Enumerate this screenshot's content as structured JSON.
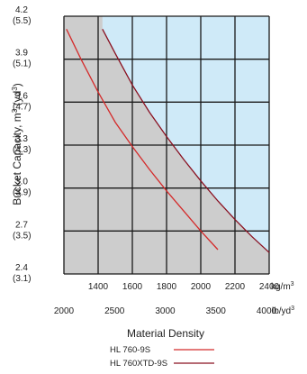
{
  "chart_data": {
    "type": "line",
    "title": "",
    "ylabel_main": "Bucket Capacity, m",
    "ylabel_unit_open": " (yd",
    "ylabel_unit_close": ")",
    "ylabel_sup": "3",
    "xlabel": "Material Density",
    "x_primary_unit": "kg/m",
    "x_primary_unit_sup": "3",
    "x_secondary_unit": "lb/yd",
    "x_secondary_unit_sup": "3",
    "x_primary_ticks": [
      1400,
      1600,
      1800,
      2000,
      2200,
      2400
    ],
    "x_primary_lim": [
      1200,
      2400
    ],
    "x_secondary_ticks": [
      2000,
      2500,
      3000,
      3500,
      4000
    ],
    "y_ticks": [
      {
        "m3": "4.2",
        "yd3": "(5.5)",
        "value": 4.2
      },
      {
        "m3": "3.9",
        "yd3": "(5.1)",
        "value": 3.9
      },
      {
        "m3": "3.6",
        "yd3": "(4.7)",
        "value": 3.6
      },
      {
        "m3": "3.3",
        "yd3": "(4.3)",
        "value": 3.3
      },
      {
        "m3": "3.0",
        "yd3": "(3.9)",
        "value": 3.0
      },
      {
        "m3": "2.7",
        "yd3": "(3.5)",
        "value": 2.7
      },
      {
        "m3": "2.4",
        "yd3": "(3.1)",
        "value": 2.4
      }
    ],
    "ylim": [
      2.4,
      4.2
    ],
    "grid": true,
    "colors": {
      "blue_zone": "#cfeaf8",
      "gray_zone": "#cdcdcd",
      "series_1": "#d42a2a",
      "series_2": "#8a1020"
    },
    "series": [
      {
        "name": "HL 760-9S",
        "x": [
          1215,
          1300,
          1400,
          1500,
          1600,
          1700,
          1800,
          1900,
          2000,
          2100
        ],
        "y": [
          4.11,
          3.9,
          3.67,
          3.46,
          3.29,
          3.13,
          2.98,
          2.84,
          2.7,
          2.57
        ]
      },
      {
        "name": "HL 760XTD-9S",
        "x": [
          1425,
          1500,
          1600,
          1700,
          1800,
          1900,
          2000,
          2100,
          2200,
          2300,
          2400
        ],
        "y": [
          4.11,
          3.94,
          3.72,
          3.53,
          3.36,
          3.2,
          3.05,
          2.91,
          2.78,
          2.66,
          2.55
        ]
      }
    ]
  }
}
